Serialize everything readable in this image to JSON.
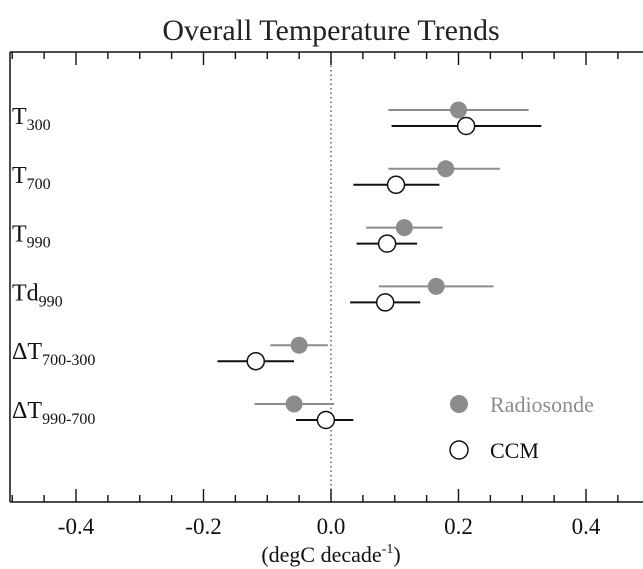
{
  "chart_data": {
    "type": "scatter",
    "title": "Overall Temperature Trends",
    "xlabel": "(degC decade",
    "xlabel_sup": "-1",
    "xlabel_end": ")",
    "xlim": [
      -0.5,
      0.5
    ],
    "xticks": [
      -0.4,
      -0.2,
      0.0,
      0.2,
      0.4
    ],
    "xtick_labels": [
      "-0.4",
      "-0.2",
      "0.0",
      "0.2",
      "0.4"
    ],
    "zero_line": "dotted",
    "categories": [
      {
        "base": "T",
        "sub": "300"
      },
      {
        "base": "T",
        "sub": "700"
      },
      {
        "base": "T",
        "sub": "990"
      },
      {
        "base": "Td",
        "sub": "990"
      },
      {
        "base": "ΔT",
        "sub": "700-300"
      },
      {
        "base": "ΔT",
        "sub": "990-700"
      }
    ],
    "series": [
      {
        "name": "Radiosonde",
        "marker": "filled-circle",
        "color": "#8c8c8c",
        "points": [
          {
            "value": 0.2,
            "low": 0.09,
            "high": 0.31
          },
          {
            "value": 0.18,
            "low": 0.09,
            "high": 0.265
          },
          {
            "value": 0.115,
            "low": 0.055,
            "high": 0.175
          },
          {
            "value": 0.165,
            "low": 0.075,
            "high": 0.255
          },
          {
            "value": -0.05,
            "low": -0.095,
            "high": -0.005
          },
          {
            "value": -0.058,
            "low": -0.12,
            "high": 0.005
          }
        ]
      },
      {
        "name": "CCM",
        "marker": "open-circle",
        "color": "#111111",
        "points": [
          {
            "value": 0.212,
            "low": 0.095,
            "high": 0.33
          },
          {
            "value": 0.102,
            "low": 0.035,
            "high": 0.17
          },
          {
            "value": 0.088,
            "low": 0.04,
            "high": 0.135
          },
          {
            "value": 0.085,
            "low": 0.03,
            "high": 0.14
          },
          {
            "value": -0.118,
            "low": -0.178,
            "high": -0.058
          },
          {
            "value": -0.008,
            "low": -0.055,
            "high": 0.035
          }
        ]
      }
    ],
    "legend": {
      "position": "bottom-right"
    }
  }
}
